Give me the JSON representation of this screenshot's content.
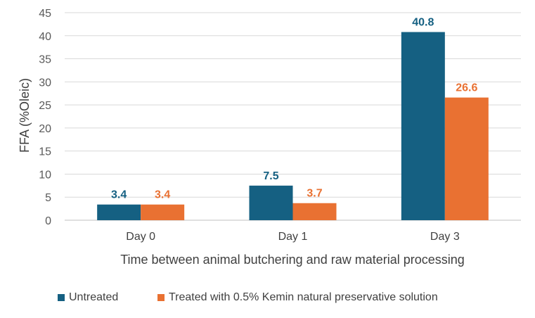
{
  "chart_data": {
    "type": "bar",
    "categories": [
      "Day 0",
      "Day 1",
      "Day 3"
    ],
    "series": [
      {
        "name": "Untreated",
        "values": [
          3.4,
          7.5,
          40.8
        ],
        "color": "#156082"
      },
      {
        "name": "Treated with 0.5% Kemin natural preservative solution",
        "values": [
          3.4,
          3.7,
          26.6
        ],
        "color": "#E97132"
      }
    ],
    "title": "",
    "xlabel": "Time between animal butchering  and raw material processing",
    "ylabel": "FFA (%Oleic)",
    "ylim": [
      0,
      45
    ],
    "yticks": [
      0,
      5,
      10,
      15,
      20,
      25,
      30,
      35,
      40,
      45
    ],
    "grid": true,
    "legend_position": "bottom",
    "data_labels": true
  }
}
